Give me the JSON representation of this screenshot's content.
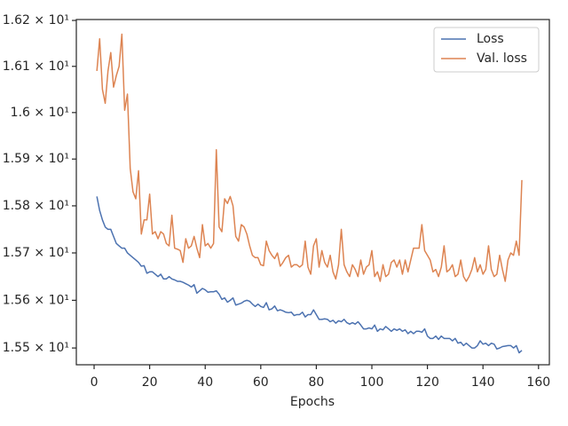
{
  "chart_data": {
    "type": "line",
    "xlabel": "Epochs",
    "yscale": "log",
    "legend": "upper right",
    "grid": false,
    "xlim": [
      -6.4,
      163.9
    ],
    "xticks": [
      0,
      20,
      40,
      60,
      80,
      100,
      120,
      140,
      160
    ],
    "ylim": [
      15.465,
      16.202
    ],
    "yticks": [
      {
        "value": 15.5,
        "label": "1.55 × 10¹"
      },
      {
        "value": 15.6,
        "label": "1.56 × 10¹"
      },
      {
        "value": 15.7,
        "label": "1.57 × 10¹"
      },
      {
        "value": 15.8,
        "label": "1.58 × 10¹"
      },
      {
        "value": 15.9,
        "label": "1.59 × 10¹"
      },
      {
        "value": 16.0,
        "label": "1.6 × 10¹"
      },
      {
        "value": 16.1,
        "label": "1.61 × 10¹"
      },
      {
        "value": 16.2,
        "label": "1.62 × 10¹"
      }
    ],
    "x": [
      1,
      2,
      3,
      4,
      5,
      6,
      7,
      8,
      9,
      10,
      11,
      12,
      13,
      14,
      15,
      16,
      17,
      18,
      19,
      20,
      21,
      22,
      23,
      24,
      25,
      26,
      27,
      28,
      29,
      30,
      31,
      32,
      33,
      34,
      35,
      36,
      37,
      38,
      39,
      40,
      41,
      42,
      43,
      44,
      45,
      46,
      47,
      48,
      49,
      50,
      51,
      52,
      53,
      54,
      55,
      56,
      57,
      58,
      59,
      60,
      61,
      62,
      63,
      64,
      65,
      66,
      67,
      68,
      69,
      70,
      71,
      72,
      73,
      74,
      75,
      76,
      77,
      78,
      79,
      80,
      81,
      82,
      83,
      84,
      85,
      86,
      87,
      88,
      89,
      90,
      91,
      92,
      93,
      94,
      95,
      96,
      97,
      98,
      99,
      100,
      101,
      102,
      103,
      104,
      105,
      106,
      107,
      108,
      109,
      110,
      111,
      112,
      113,
      114,
      115,
      116,
      117,
      118,
      119,
      120,
      121,
      122,
      123,
      124,
      125,
      126,
      127,
      128,
      129,
      130,
      131,
      132,
      133,
      134,
      135,
      136,
      137,
      138,
      139,
      140,
      141,
      142,
      143,
      144,
      145,
      146,
      147,
      148,
      149,
      150,
      151,
      152,
      153,
      154
    ],
    "series": [
      {
        "name": "Loss",
        "color": "#4c72b0",
        "values": [
          15.82,
          15.79,
          15.77,
          15.755,
          15.75,
          15.75,
          15.735,
          15.72,
          15.715,
          15.71,
          15.71,
          15.7,
          15.695,
          15.69,
          15.685,
          15.68,
          15.672,
          15.673,
          15.657,
          15.66,
          15.66,
          15.655,
          15.65,
          15.655,
          15.645,
          15.645,
          15.65,
          15.645,
          15.643,
          15.64,
          15.64,
          15.638,
          15.635,
          15.632,
          15.628,
          15.633,
          15.615,
          15.62,
          15.625,
          15.622,
          15.617,
          15.618,
          15.618,
          15.62,
          15.613,
          15.602,
          15.605,
          15.596,
          15.6,
          15.605,
          15.59,
          15.592,
          15.594,
          15.598,
          15.6,
          15.598,
          15.592,
          15.587,
          15.592,
          15.587,
          15.585,
          15.595,
          15.58,
          15.582,
          15.588,
          15.578,
          15.58,
          15.578,
          15.575,
          15.574,
          15.575,
          15.568,
          15.57,
          15.57,
          15.575,
          15.565,
          15.57,
          15.57,
          15.58,
          15.57,
          15.56,
          15.56,
          15.561,
          15.56,
          15.555,
          15.558,
          15.552,
          15.557,
          15.555,
          15.56,
          15.553,
          15.55,
          15.553,
          15.55,
          15.555,
          15.548,
          15.54,
          15.54,
          15.542,
          15.54,
          15.548,
          15.535,
          15.54,
          15.538,
          15.545,
          15.54,
          15.535,
          15.54,
          15.537,
          15.54,
          15.535,
          15.538,
          15.53,
          15.535,
          15.53,
          15.535,
          15.535,
          15.533,
          15.54,
          15.525,
          15.52,
          15.52,
          15.525,
          15.518,
          15.525,
          15.52,
          15.52,
          15.52,
          15.515,
          15.52,
          15.51,
          15.512,
          15.505,
          15.51,
          15.505,
          15.5,
          15.5,
          15.505,
          15.515,
          15.508,
          15.51,
          15.505,
          15.51,
          15.508,
          15.498,
          15.5,
          15.503,
          15.504,
          15.505,
          15.505,
          15.5,
          15.505,
          15.49,
          15.495
        ]
      },
      {
        "name": "Val. loss",
        "color": "#dd8452",
        "values": [
          16.09,
          16.16,
          16.05,
          16.02,
          16.09,
          16.13,
          16.055,
          16.08,
          16.1,
          16.17,
          16.005,
          16.04,
          15.88,
          15.83,
          15.815,
          15.875,
          15.74,
          15.77,
          15.77,
          15.825,
          15.74,
          15.745,
          15.73,
          15.745,
          15.74,
          15.72,
          15.715,
          15.78,
          15.71,
          15.708,
          15.705,
          15.68,
          15.73,
          15.71,
          15.715,
          15.735,
          15.71,
          15.69,
          15.76,
          15.715,
          15.72,
          15.71,
          15.72,
          15.92,
          15.755,
          15.745,
          15.815,
          15.805,
          15.82,
          15.8,
          15.735,
          15.725,
          15.76,
          15.755,
          15.74,
          15.715,
          15.695,
          15.69,
          15.69,
          15.675,
          15.673,
          15.725,
          15.705,
          15.695,
          15.688,
          15.7,
          15.672,
          15.68,
          15.69,
          15.695,
          15.67,
          15.675,
          15.675,
          15.67,
          15.675,
          15.725,
          15.67,
          15.655,
          15.715,
          15.73,
          15.67,
          15.705,
          15.68,
          15.67,
          15.695,
          15.66,
          15.645,
          15.675,
          15.75,
          15.675,
          15.66,
          15.65,
          15.675,
          15.665,
          15.65,
          15.685,
          15.655,
          15.67,
          15.675,
          15.705,
          15.65,
          15.66,
          15.64,
          15.675,
          15.65,
          15.655,
          15.68,
          15.685,
          15.67,
          15.685,
          15.655,
          15.685,
          15.66,
          15.685,
          15.71,
          15.71,
          15.71,
          15.76,
          15.705,
          15.695,
          15.685,
          15.66,
          15.665,
          15.65,
          15.67,
          15.715,
          15.66,
          15.665,
          15.675,
          15.65,
          15.655,
          15.685,
          15.65,
          15.64,
          15.65,
          15.665,
          15.69,
          15.66,
          15.675,
          15.655,
          15.665,
          15.715,
          15.665,
          15.65,
          15.655,
          15.695,
          15.665,
          15.64,
          15.685,
          15.7,
          15.695,
          15.725,
          15.695,
          15.855
        ]
      }
    ]
  }
}
